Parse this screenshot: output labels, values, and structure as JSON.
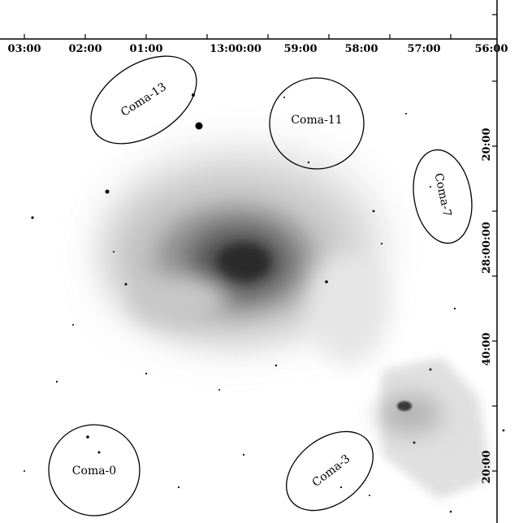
{
  "ra_ticks": [
    "03:00",
    "02:00",
    "01:00",
    "13:00:00",
    "59:00",
    "58:00",
    "57:00",
    "56:00"
  ],
  "dec_ticks": [
    "20:00",
    "28:00:00",
    "40:00",
    "20:00"
  ],
  "fields": [
    {
      "name": "Coma-13"
    },
    {
      "name": "Coma-11"
    },
    {
      "name": "Coma-7"
    },
    {
      "name": "Coma-0"
    },
    {
      "name": "Coma-3"
    }
  ],
  "colors": {
    "ink": "#000000",
    "background": "#ffffff",
    "emission": "#2a2a2a"
  }
}
